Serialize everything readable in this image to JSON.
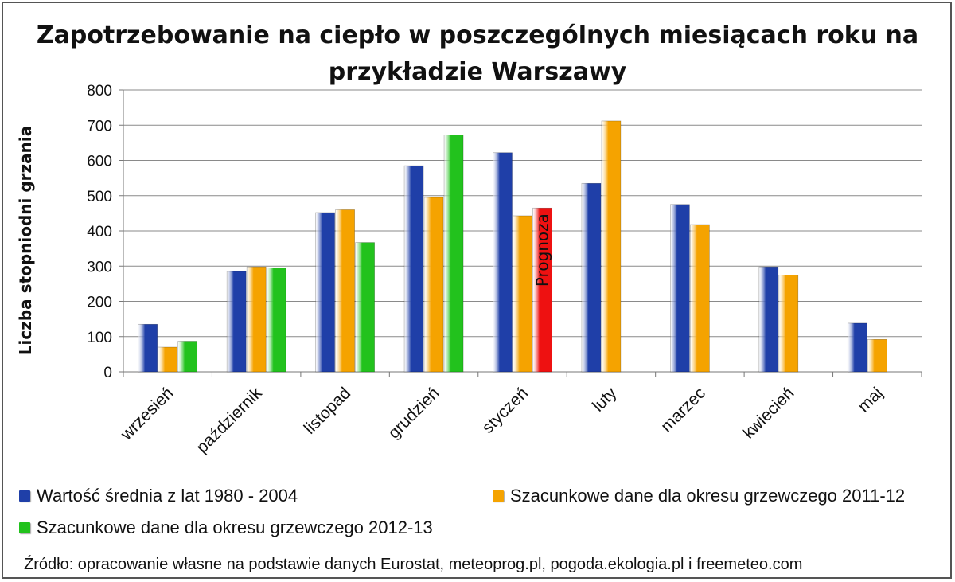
{
  "chart_data": {
    "type": "bar",
    "title": "Zapotrzebowanie na ciepło w poszczególnych miesiącach roku na przykładzie Warszawy",
    "title_line1": "Zapotrzebowanie na ciepło w poszczególnych miesiącach roku na",
    "title_line2": "przykładzie Warszawy",
    "ylabel": "Liczba stopniodni grzania",
    "xlabel": "",
    "ylim": [
      0,
      800
    ],
    "yticks": [
      0,
      100,
      200,
      300,
      400,
      500,
      600,
      700,
      800
    ],
    "grid": true,
    "legend_placement": "bottom",
    "categories": [
      "wrzesień",
      "październik",
      "listopad",
      "grudzień",
      "styczeń",
      "luty",
      "marzec",
      "kwiecień",
      "maj"
    ],
    "series": [
      {
        "name": "Wartość średnia z lat 1980 - 2004",
        "color": "#1f3fa8",
        "values": [
          135,
          285,
          452,
          585,
          622,
          535,
          475,
          298,
          138
        ]
      },
      {
        "name": "Szacunkowe dane dla okresu grzewczego 2011-12",
        "color": "#f5a300",
        "values": [
          70,
          298,
          460,
          495,
          443,
          712,
          418,
          275,
          92
        ]
      },
      {
        "name": "Szacunkowe dane dla okresu grzewczego 2012-13",
        "color": "#22c21d",
        "values": [
          87,
          295,
          367,
          672,
          null,
          null,
          null,
          null,
          null
        ]
      }
    ],
    "forecast": {
      "category": "styczeń",
      "value": 465,
      "label": "Prognoza",
      "color": "#ee1111"
    }
  },
  "source": "Źródło: opracowanie własne na podstawie danych Eurostat, meteoprog.pl, pogoda.ekologia.pl i freemeteo.com"
}
